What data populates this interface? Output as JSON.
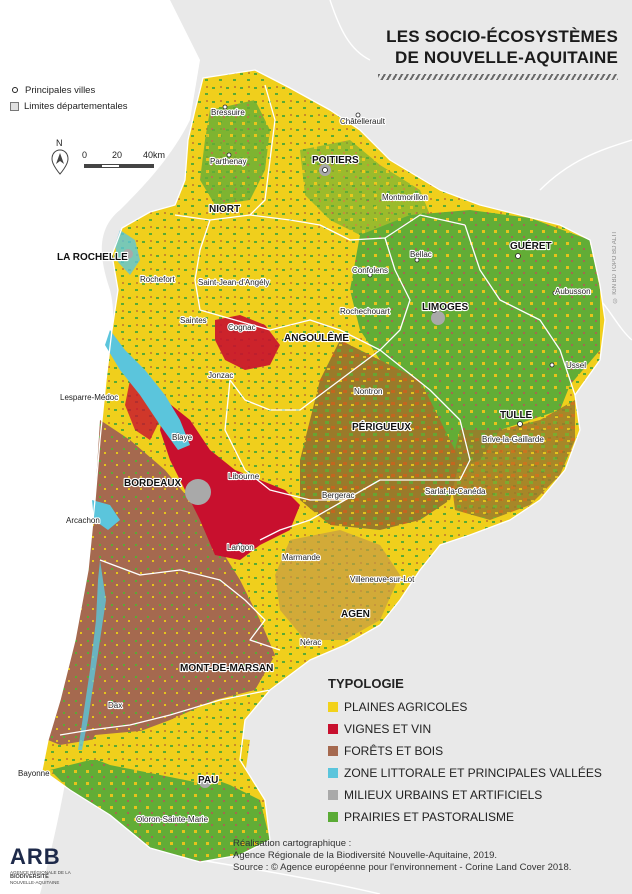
{
  "title": {
    "line1": "LES SOCIO-ÉCOSYSTÈMES",
    "line2": "DE NOUVELLE-AQUITAINE"
  },
  "legend_top": {
    "cities_label": "Principales villes",
    "departments_label": "Limites départementales"
  },
  "scale": {
    "north": "N",
    "labels": [
      "0",
      "20",
      "40km"
    ]
  },
  "typology": {
    "heading": "TYPOLOGIE",
    "items": [
      {
        "label": "PLAINES AGRICOLES",
        "color": "#f2d21b"
      },
      {
        "label": "VIGNES ET VIN",
        "color": "#c8102e"
      },
      {
        "label": "FORÊTS ET BOIS",
        "color": "#a5694f"
      },
      {
        "label": "ZONE LITTORALE ET PRINCIPALES VALLÉES",
        "color": "#5bc5dc"
      },
      {
        "label": "MILIEUX URBAINS ET ARTIFICIELS",
        "color": "#a9a9a9"
      },
      {
        "label": "PRAIRIES ET PASTORALISME",
        "color": "#5aab35"
      }
    ]
  },
  "credits": {
    "line1": "Réalisation cartographique :",
    "line2": "Agence Régionale de la Biodiversité Nouvelle-Aquitaine, 2019.",
    "line3": "Source : © Agence européenne pour l'environnement - Corine Land Cover 2018."
  },
  "logo": {
    "mark": "ARB",
    "sub1": "AGENCE RÉGIONALE DE LA",
    "sub2": "BIODIVERSITÉ",
    "sub3": "NOUVELLE-AQUITAINE"
  },
  "copyright": "© IGN BD TOPO BD ALTI",
  "cities": {
    "major": [
      "POITIERS",
      "NIORT",
      "LA ROCHELLE",
      "GUÉRET",
      "LIMOGES",
      "ANGOULÊME",
      "TULLE",
      "PÉRIGUEUX",
      "BORDEAUX",
      "AGEN",
      "MONT-DE-MARSAN",
      "PAU"
    ],
    "minor": [
      "Bressuire",
      "Châtellerault",
      "Parthenay",
      "Montmorillon",
      "Bellac",
      "Confolens",
      "Aubusson",
      "Rochefort",
      "Saint-Jean-d'Angély",
      "Saintes",
      "Cognac",
      "Rochechouart",
      "Jonzac",
      "Nontron",
      "Ussel",
      "Lesparre-Médoc",
      "Blaye",
      "Brive-la-Gaillarde",
      "Libourne",
      "Bergerac",
      "Sarlat-la-Canéda",
      "Arcachon",
      "Langon",
      "Marmande",
      "Villeneuve-sur-Lot",
      "Nérac",
      "Dax",
      "Bayonne",
      "Oloron-Sainte-Marie"
    ]
  }
}
